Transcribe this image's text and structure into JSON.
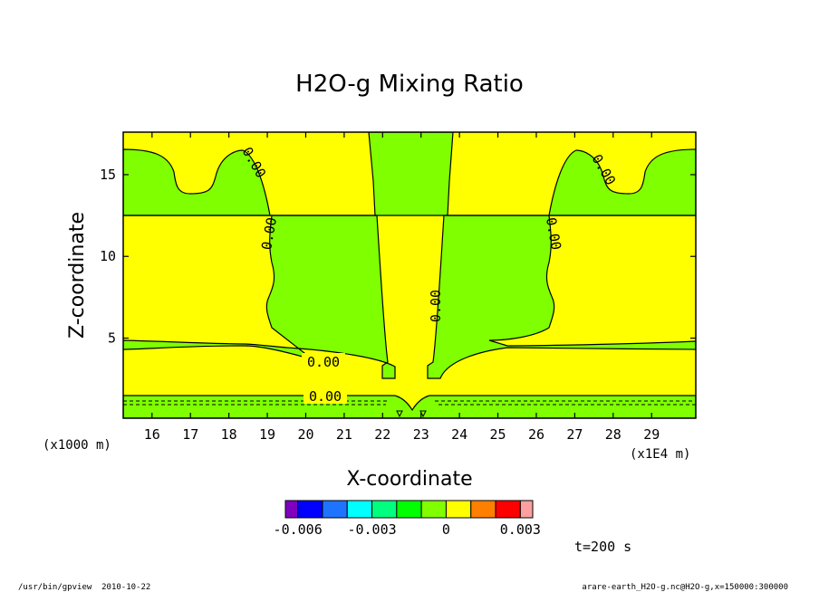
{
  "chart_data": {
    "type": "contour",
    "title": "H2O-g Mixing Ratio",
    "xlabel": "X-coordinate",
    "ylabel": "Z-coordinate",
    "x_unit_left": "(x1000 m)",
    "x_unit_right": "(x1E4 m)",
    "xlim": [
      15.25,
      30.15
    ],
    "ylim": [
      0.1,
      17.6
    ],
    "x_ticks": [
      16,
      17,
      18,
      19,
      20,
      21,
      22,
      23,
      24,
      25,
      26,
      27,
      28,
      29
    ],
    "y_ticks": [
      5,
      10,
      15
    ],
    "contour_labels": [
      "0.00",
      "0.00",
      "0.00",
      "0.00",
      "0.00",
      "0.00"
    ],
    "colorbar": {
      "tick_labels": [
        "-0.006",
        "-0.003",
        "0",
        "0.003"
      ],
      "tick_values": [
        -0.006,
        -0.003,
        0,
        0.003
      ],
      "bins": [
        -0.0065,
        -0.006,
        -0.005,
        -0.004,
        -0.003,
        -0.002,
        -0.001,
        0,
        0.001,
        0.002,
        0.003,
        0.0035
      ],
      "colors": [
        "#7f00bf",
        "#0000ff",
        "#1f74ff",
        "#00ffff",
        "#00ff7f",
        "#00ff00",
        "#7fff00",
        "#ffff00",
        "#ff7f00",
        "#ff0000",
        "#ff9f9f"
      ]
    },
    "field_colors": {
      "positive": "#ffff00",
      "negative": "#7fff00"
    },
    "time_label": "t=200 s"
  },
  "footer": {
    "left": "/usr/bin/gpview  2010-10-22",
    "right": "arare-earth_H2O-g.nc@H2O-g,x=150000:300000"
  }
}
